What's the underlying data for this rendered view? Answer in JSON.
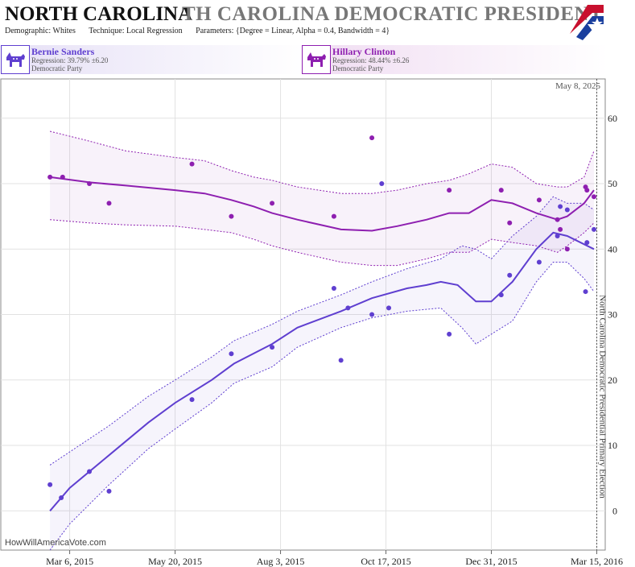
{
  "header": {
    "title": "NORTH CAROLINA",
    "title_ghost": "TH CAROLINA DEMOCRATIC PRESIDENTIAL I",
    "demographic": "Demographic: Whites",
    "technique": "Technique: Local Regression",
    "parameters": "Parameters: {Degree = Linear, Alpha = 0.4, Bandwidth = 4}"
  },
  "candidates": [
    {
      "name": "Bernie Sanders",
      "regression": "Regression: 39.79% ±6.20",
      "party": "Democratic Party",
      "color": "#5f3fd0"
    },
    {
      "name": "Hillary Clinton",
      "regression": "Regression: 48.44% ±6.26",
      "party": "Democratic Party",
      "color": "#8e1fb0"
    }
  ],
  "footer": {
    "watermark": "HowWillAmericaVote.com"
  },
  "chart_data": {
    "type": "scatter",
    "date_label": "May 8, 2025",
    "event_label": "North Carolina Democratic Presidential Primary Election",
    "xlim": [
      "2015-01-16",
      "2016-03-21"
    ],
    "ylim": [
      -6,
      66
    ],
    "yticks": [
      0,
      10,
      20,
      30,
      40,
      50,
      60
    ],
    "xticks": [
      "Mar 6, 2015",
      "May 20, 2015",
      "Aug 3, 2015",
      "Oct 17, 2015",
      "Dec 31, 2015",
      "Mar 15, 2016"
    ],
    "xtick_dates": [
      "2015-03-06",
      "2015-05-20",
      "2015-08-03",
      "2015-10-17",
      "2015-12-31",
      "2016-03-15"
    ],
    "event_date": "2016-03-15",
    "grid": true,
    "series": [
      {
        "name": "Bernie Sanders",
        "color": "#5f3fd0",
        "points": [
          [
            "2015-02-20",
            4
          ],
          [
            "2015-02-28",
            2
          ],
          [
            "2015-03-20",
            6
          ],
          [
            "2015-04-03",
            3
          ],
          [
            "2015-06-01",
            17
          ],
          [
            "2015-06-29",
            24
          ],
          [
            "2015-07-28",
            25
          ],
          [
            "2015-09-10",
            34
          ],
          [
            "2015-09-15",
            23
          ],
          [
            "2015-09-20",
            31
          ],
          [
            "2015-10-07",
            30
          ],
          [
            "2015-10-14",
            50
          ],
          [
            "2015-10-19",
            31
          ],
          [
            "2015-12-01",
            27
          ],
          [
            "2016-01-07",
            33
          ],
          [
            "2016-01-13",
            36
          ],
          [
            "2016-02-03",
            38
          ],
          [
            "2016-02-16",
            42
          ],
          [
            "2016-02-18",
            46.5
          ],
          [
            "2016-02-23",
            46
          ],
          [
            "2016-03-07",
            33.5
          ],
          [
            "2016-03-08",
            41
          ],
          [
            "2016-03-13",
            43
          ]
        ],
        "trend": [
          [
            "2015-02-20",
            0
          ],
          [
            "2015-03-06",
            3.5
          ],
          [
            "2015-04-03",
            8.5
          ],
          [
            "2015-05-01",
            13.5
          ],
          [
            "2015-05-20",
            16.5
          ],
          [
            "2015-06-15",
            20
          ],
          [
            "2015-07-01",
            22.5
          ],
          [
            "2015-07-28",
            25.5
          ],
          [
            "2015-08-15",
            28
          ],
          [
            "2015-09-15",
            30.5
          ],
          [
            "2015-10-07",
            32.5
          ],
          [
            "2015-11-01",
            34
          ],
          [
            "2015-11-15",
            34.5
          ],
          [
            "2015-11-25",
            35
          ],
          [
            "2015-12-07",
            34.5
          ],
          [
            "2015-12-20",
            32
          ],
          [
            "2015-12-31",
            32
          ],
          [
            "2016-01-15",
            35
          ],
          [
            "2016-02-01",
            40
          ],
          [
            "2016-02-13",
            42.5
          ],
          [
            "2016-02-23",
            42
          ],
          [
            "2016-03-13",
            40
          ]
        ],
        "upper": [
          [
            "2015-02-20",
            7
          ],
          [
            "2015-03-06",
            9
          ],
          [
            "2015-04-03",
            13
          ],
          [
            "2015-05-01",
            17.5
          ],
          [
            "2015-05-20",
            20
          ],
          [
            "2015-06-15",
            23.5
          ],
          [
            "2015-07-01",
            26
          ],
          [
            "2015-07-28",
            28.5
          ],
          [
            "2015-08-15",
            30.5
          ],
          [
            "2015-09-15",
            33
          ],
          [
            "2015-10-07",
            35
          ],
          [
            "2015-11-01",
            37
          ],
          [
            "2015-11-25",
            38.5
          ],
          [
            "2015-12-10",
            40.5
          ],
          [
            "2015-12-20",
            40
          ],
          [
            "2015-12-31",
            38.5
          ],
          [
            "2016-01-15",
            42
          ],
          [
            "2016-02-01",
            45
          ],
          [
            "2016-02-13",
            48
          ],
          [
            "2016-02-23",
            47
          ],
          [
            "2016-03-06",
            47
          ],
          [
            "2016-03-13",
            46
          ]
        ],
        "lower": [
          [
            "2015-02-20",
            -6
          ],
          [
            "2015-03-06",
            -2
          ],
          [
            "2015-04-03",
            4
          ],
          [
            "2015-05-01",
            9.5
          ],
          [
            "2015-05-20",
            12.5
          ],
          [
            "2015-06-15",
            16.5
          ],
          [
            "2015-07-01",
            19.5
          ],
          [
            "2015-07-28",
            22
          ],
          [
            "2015-08-15",
            25
          ],
          [
            "2015-09-15",
            28
          ],
          [
            "2015-10-07",
            29.5
          ],
          [
            "2015-11-01",
            30.5
          ],
          [
            "2015-11-25",
            31
          ],
          [
            "2015-12-10",
            28
          ],
          [
            "2015-12-20",
            25.5
          ],
          [
            "2015-12-31",
            27
          ],
          [
            "2016-01-15",
            29
          ],
          [
            "2016-02-01",
            35
          ],
          [
            "2016-02-13",
            38
          ],
          [
            "2016-02-23",
            38
          ],
          [
            "2016-03-06",
            35.5
          ],
          [
            "2016-03-13",
            33.5
          ]
        ]
      },
      {
        "name": "Hillary Clinton",
        "color": "#8e1fb0",
        "points": [
          [
            "2015-02-20",
            51
          ],
          [
            "2015-03-01",
            51
          ],
          [
            "2015-03-20",
            50
          ],
          [
            "2015-04-03",
            47
          ],
          [
            "2015-06-01",
            53
          ],
          [
            "2015-06-29",
            45
          ],
          [
            "2015-07-28",
            47
          ],
          [
            "2015-09-10",
            45
          ],
          [
            "2015-10-07",
            57
          ],
          [
            "2015-12-01",
            49
          ],
          [
            "2016-01-07",
            49
          ],
          [
            "2016-01-13",
            44
          ],
          [
            "2016-02-03",
            47.5
          ],
          [
            "2016-02-16",
            44.5
          ],
          [
            "2016-02-18",
            43
          ],
          [
            "2016-02-23",
            40
          ],
          [
            "2016-03-07",
            49.5
          ],
          [
            "2016-03-08",
            49
          ],
          [
            "2016-03-13",
            48
          ]
        ],
        "trend": [
          [
            "2015-02-20",
            51
          ],
          [
            "2015-03-20",
            50.2
          ],
          [
            "2015-04-15",
            49.7
          ],
          [
            "2015-05-20",
            49
          ],
          [
            "2015-06-10",
            48.5
          ],
          [
            "2015-06-29",
            47.5
          ],
          [
            "2015-07-15",
            46.5
          ],
          [
            "2015-07-28",
            45.5
          ],
          [
            "2015-08-15",
            44.5
          ],
          [
            "2015-09-15",
            43
          ],
          [
            "2015-10-07",
            42.8
          ],
          [
            "2015-10-25",
            43.5
          ],
          [
            "2015-11-15",
            44.5
          ],
          [
            "2015-12-01",
            45.5
          ],
          [
            "2015-12-15",
            45.5
          ],
          [
            "2015-12-31",
            47.5
          ],
          [
            "2016-01-15",
            47
          ],
          [
            "2016-02-01",
            45.5
          ],
          [
            "2016-02-16",
            44.5
          ],
          [
            "2016-02-23",
            45
          ],
          [
            "2016-03-06",
            47
          ],
          [
            "2016-03-13",
            49
          ]
        ],
        "upper": [
          [
            "2015-02-20",
            58
          ],
          [
            "2015-03-20",
            56.5
          ],
          [
            "2015-04-15",
            55
          ],
          [
            "2015-05-20",
            54
          ],
          [
            "2015-06-10",
            53.5
          ],
          [
            "2015-06-29",
            52
          ],
          [
            "2015-07-15",
            51
          ],
          [
            "2015-07-28",
            50.5
          ],
          [
            "2015-08-15",
            49.5
          ],
          [
            "2015-09-15",
            48.5
          ],
          [
            "2015-10-07",
            48.5
          ],
          [
            "2015-10-25",
            49
          ],
          [
            "2015-11-15",
            50
          ],
          [
            "2015-12-01",
            50.5
          ],
          [
            "2015-12-15",
            51.5
          ],
          [
            "2015-12-31",
            53
          ],
          [
            "2016-01-15",
            52.5
          ],
          [
            "2016-02-01",
            50
          ],
          [
            "2016-02-16",
            49.5
          ],
          [
            "2016-02-23",
            49.5
          ],
          [
            "2016-03-06",
            51
          ],
          [
            "2016-03-13",
            55
          ]
        ],
        "lower": [
          [
            "2015-02-20",
            44.5
          ],
          [
            "2015-03-20",
            44
          ],
          [
            "2015-04-15",
            43.7
          ],
          [
            "2015-05-20",
            43.5
          ],
          [
            "2015-06-10",
            43
          ],
          [
            "2015-06-29",
            42.5
          ],
          [
            "2015-07-15",
            41.5
          ],
          [
            "2015-07-28",
            40.5
          ],
          [
            "2015-08-15",
            39.5
          ],
          [
            "2015-09-15",
            38
          ],
          [
            "2015-10-07",
            37.5
          ],
          [
            "2015-10-25",
            37.5
          ],
          [
            "2015-11-15",
            38.5
          ],
          [
            "2015-12-01",
            39.5
          ],
          [
            "2015-12-15",
            39.5
          ],
          [
            "2015-12-31",
            41.5
          ],
          [
            "2016-01-15",
            41
          ],
          [
            "2016-02-01",
            40.5
          ],
          [
            "2016-02-16",
            39.5
          ],
          [
            "2016-02-23",
            40.5
          ],
          [
            "2016-03-06",
            42.5
          ],
          [
            "2016-03-13",
            44
          ]
        ]
      }
    ]
  }
}
